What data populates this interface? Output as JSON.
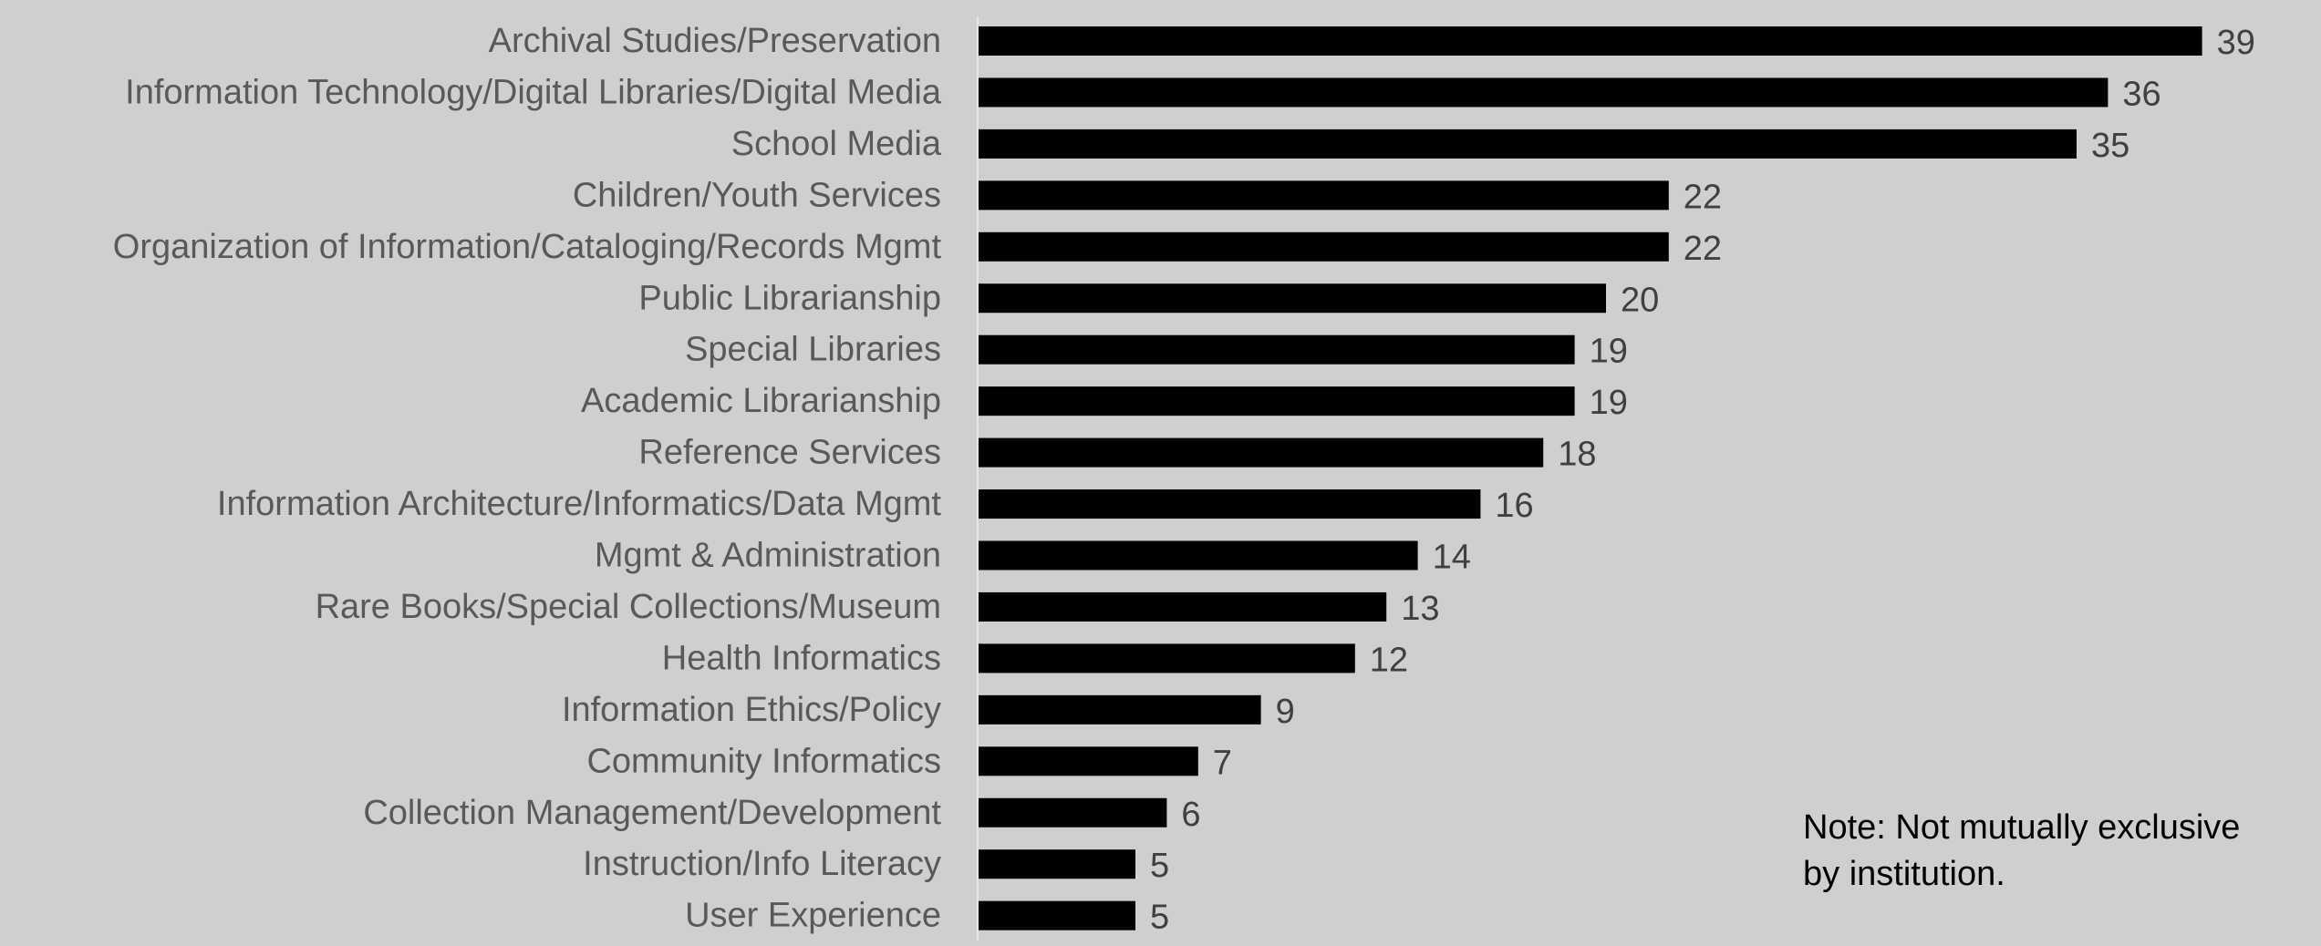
{
  "chart_data": {
    "type": "bar",
    "orientation": "horizontal",
    "title": "",
    "xlabel": "",
    "ylabel": "",
    "xlim": [
      0,
      39
    ],
    "grid": false,
    "legend": "none",
    "categories": [
      "Archival Studies/Preservation",
      "Information Technology/Digital Libraries/Digital Media",
      "School Media",
      "Children/Youth Services",
      "Organization of Information/Cataloging/Records Mgmt",
      "Public Librarianship",
      "Special Libraries",
      "Academic Librarianship",
      "Reference Services",
      "Information Architecture/Informatics/Data Mgmt",
      "Mgmt & Administration",
      "Rare Books/Special Collections/Museum",
      "Health Informatics",
      "Information Ethics/Policy",
      "Community Informatics",
      "Collection Management/Development",
      "Instruction/Info Literacy",
      "User Experience"
    ],
    "values": [
      39,
      36,
      35,
      22,
      22,
      20,
      19,
      19,
      18,
      16,
      14,
      13,
      12,
      9,
      7,
      6,
      5,
      5
    ],
    "data_labels": [
      "39",
      "36",
      "35",
      "22",
      "22",
      "20",
      "19",
      "19",
      "18",
      "16",
      "14",
      "13",
      "12",
      "9",
      "7",
      "6",
      "5",
      "5"
    ],
    "annotation": {
      "line1": "Note: Not mutually exclusive",
      "line2": "by institution."
    },
    "colors": {
      "bar": "#000000",
      "category_label": "#595959",
      "value_label": "#404040",
      "axis_line": "#e6e6e6",
      "background": "#d0cece"
    }
  }
}
